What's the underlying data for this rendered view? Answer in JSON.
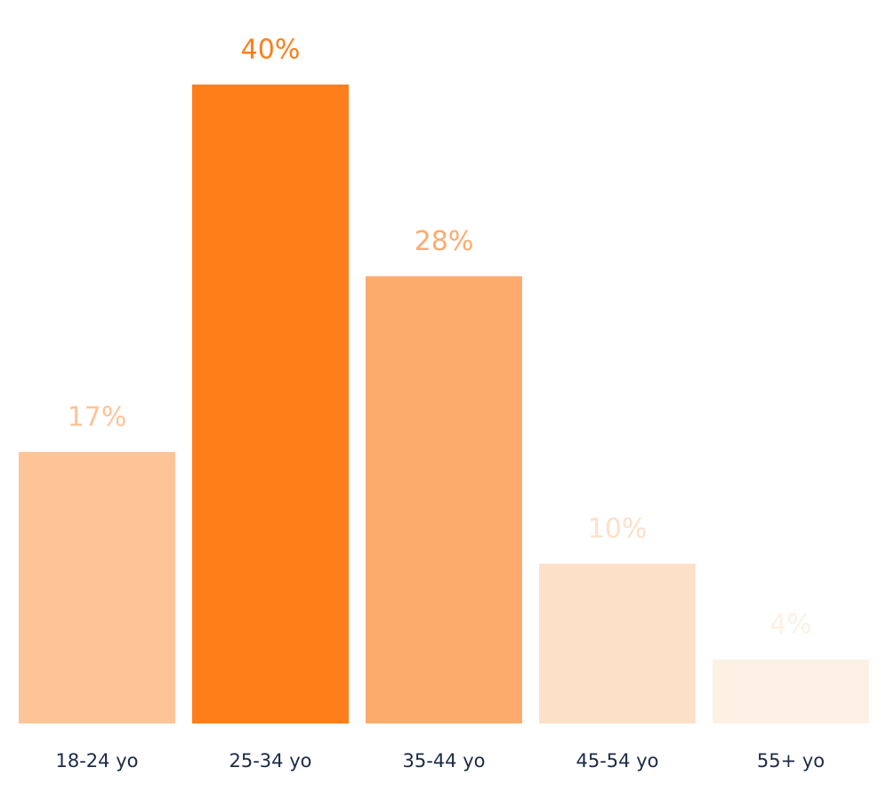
{
  "chart_data": {
    "type": "bar",
    "categories": [
      "18-24 yo",
      "25-34 yo",
      "35-44 yo",
      "45-54 yo",
      "55+ yo"
    ],
    "values": [
      17,
      40,
      28,
      10,
      4
    ],
    "value_labels": [
      "17%",
      "40%",
      "28%",
      "10%",
      "4%"
    ],
    "colors": [
      "#fdc498",
      "#fe7e1a",
      "#fdab6d",
      "#fde0c8",
      "#fdf0e4"
    ]
  }
}
